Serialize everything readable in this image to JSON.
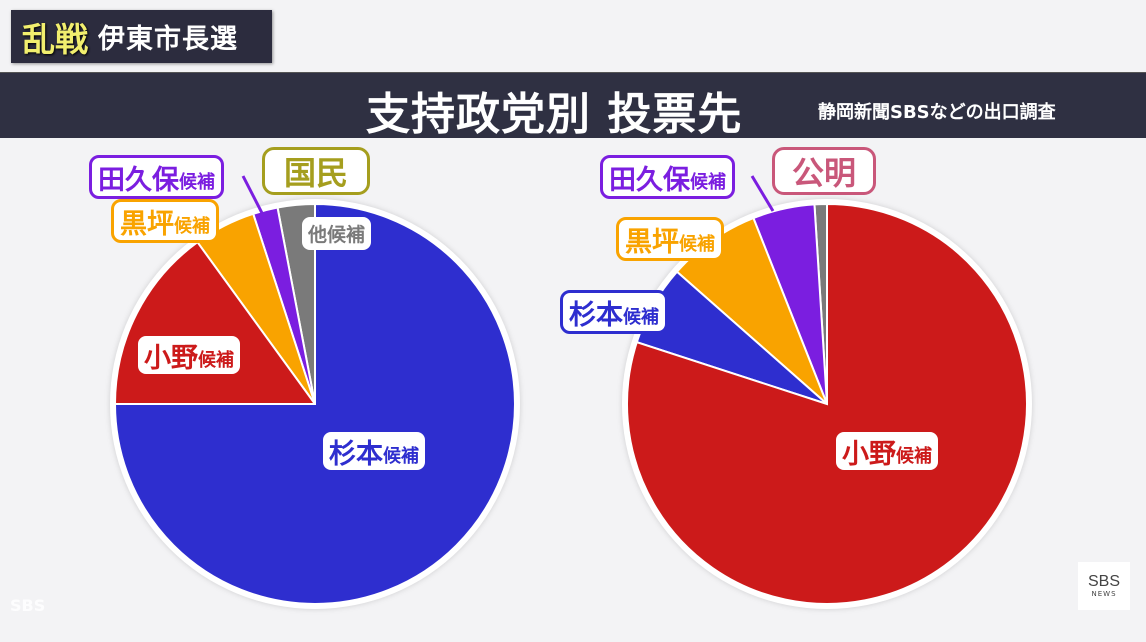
{
  "badge": {
    "hot": "乱戦",
    "sub": "伊東市長選"
  },
  "header": {
    "title": "支持政党別 投票先",
    "source": "静岡新聞SBSなどの出口調査"
  },
  "suffix": "候補",
  "colors": {
    "sugimoto": "#2e2ecf",
    "ono": "#cc1a1a",
    "kurotsubo": "#f9a300",
    "takubo": "#7b1ee0",
    "other": "#7a7a7a",
    "kokumin_border": "#a59e1e",
    "komei_border": "#c9577a"
  },
  "left_chart": {
    "party": "国民",
    "labels": {
      "takubo": "田久保",
      "kurotsubo": "黒坪",
      "ono": "小野",
      "sugimoto": "杉本",
      "other": "他候補"
    }
  },
  "right_chart": {
    "party": "公明",
    "labels": {
      "takubo": "田久保",
      "kurotsubo": "黒坪",
      "sugimoto": "杉本",
      "ono": "小野"
    }
  },
  "logo": {
    "top": "SBS",
    "bottom": "NEWS"
  },
  "watermark": "SBS",
  "chart_data": [
    {
      "type": "pie",
      "title": "支持政党別 投票先 — 国民",
      "categories": [
        "他候補",
        "田久保候補",
        "黒坪候補",
        "小野候補",
        "杉本候補"
      ],
      "values": [
        3,
        2,
        5,
        15,
        75
      ],
      "colors": [
        "#7a7a7a",
        "#7b1ee0",
        "#f9a300",
        "#cc1a1a",
        "#2e2ecf"
      ],
      "start_angle": "12 o'clock, counterclockwise",
      "note": "values estimated from slice angles (%)"
    },
    {
      "type": "pie",
      "title": "支持政党別 投票先 — 公明",
      "categories": [
        "他候補",
        "田久保候補",
        "黒坪候補",
        "杉本候補",
        "小野候補"
      ],
      "values": [
        1,
        5,
        7.5,
        6.5,
        80
      ],
      "colors": [
        "#7a7a7a",
        "#7b1ee0",
        "#f9a300",
        "#2e2ecf",
        "#cc1a1a"
      ],
      "start_angle": "12 o'clock, counterclockwise",
      "note": "values estimated from slice angles (%)"
    }
  ]
}
